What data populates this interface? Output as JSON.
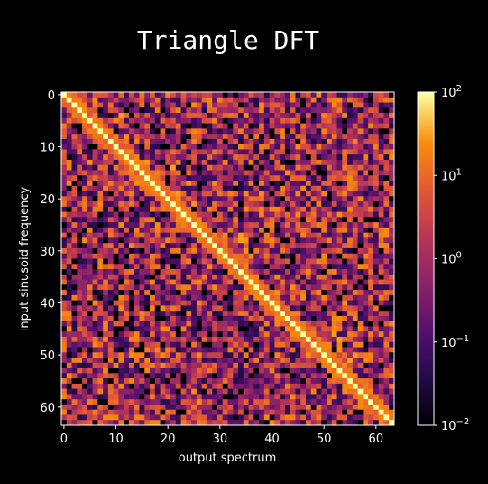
{
  "chart_data": {
    "type": "heatmap",
    "title": "Triangle DFT",
    "xlabel": "output spectrum",
    "ylabel": "input sinusoid frequency",
    "rows": 64,
    "cols": 64,
    "xlim": [
      0,
      63
    ],
    "ylim": [
      0,
      63
    ],
    "x_ticks": [
      0,
      10,
      20,
      30,
      40,
      50,
      60
    ],
    "y_ticks": [
      0,
      10,
      20,
      30,
      40,
      50,
      60
    ],
    "colormap": "inferno",
    "color_scale": "log",
    "color_range": [
      0.01,
      100
    ],
    "colorbar_ticks": [
      {
        "base": "10",
        "exp": "2"
      },
      {
        "base": "10",
        "exp": "1"
      },
      {
        "base": "10",
        "exp": "0"
      },
      {
        "base": "10",
        "exp": "−1"
      },
      {
        "base": "10",
        "exp": "−2"
      }
    ],
    "pattern": {
      "main_diagonal_value": 100,
      "near_diagonal_value": 3,
      "background_range": [
        0.03,
        10
      ],
      "secondary_band_near_row": 30
    },
    "grid": false
  }
}
